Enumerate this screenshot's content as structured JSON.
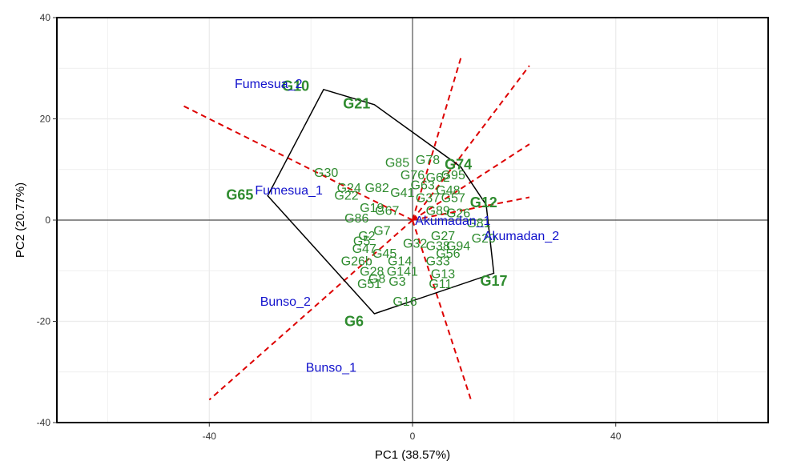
{
  "chart_data": {
    "type": "scatter",
    "xlabel": "PC1 (38.57%)",
    "ylabel": "PC2 (20.77%)",
    "xlim": [
      -70,
      70
    ],
    "ylim": [
      -40,
      40
    ],
    "x_ticks": [
      -40,
      0,
      40
    ],
    "y_ticks": [
      -40,
      -20,
      0,
      20,
      40
    ],
    "grid": true,
    "colors": {
      "environment": "#1111cc",
      "genotype": "#2e8b2e",
      "rays": "#dd0000",
      "hull": "#000000",
      "grid": "#ebebeb"
    },
    "environments": [
      {
        "label": "Fumesua_2",
        "x": -35,
        "y": 27
      },
      {
        "label": "Fumesua_1",
        "x": -31,
        "y": 6
      },
      {
        "label": "Bunso_2",
        "x": -30,
        "y": -16
      },
      {
        "label": "Bunso_1",
        "x": -21,
        "y": -29
      },
      {
        "label": "Akumadan_1",
        "x": 0.5,
        "y": 0
      },
      {
        "label": "Akumadan_2",
        "x": 14,
        "y": -3
      }
    ],
    "hull": [
      {
        "x": -17.5,
        "y": 25.8
      },
      {
        "x": -7.5,
        "y": 22.8
      },
      {
        "x": 9.5,
        "y": 10.5
      },
      {
        "x": 14.5,
        "y": 3
      },
      {
        "x": 16,
        "y": -10.5
      },
      {
        "x": -7.5,
        "y": -18.5
      },
      {
        "x": -28.5,
        "y": 4.8
      }
    ],
    "rays": [
      {
        "x": -45,
        "y": 22.5
      },
      {
        "x": -40,
        "y": -35.5
      },
      {
        "x": 9.5,
        "y": 32
      },
      {
        "x": 23,
        "y": 30.5
      },
      {
        "x": 23,
        "y": 15
      },
      {
        "x": 23,
        "y": 4.5
      },
      {
        "x": 11.5,
        "y": -35.5
      }
    ],
    "genotypes_highlighted": [
      {
        "label": "G10",
        "x": -23,
        "y": 26.5
      },
      {
        "label": "G21",
        "x": -11,
        "y": 23
      },
      {
        "label": "G74",
        "x": 9,
        "y": 11
      },
      {
        "label": "G12",
        "x": 14,
        "y": 3.5
      },
      {
        "label": "G17",
        "x": 16,
        "y": -12
      },
      {
        "label": "G6",
        "x": -11.5,
        "y": -20
      },
      {
        "label": "G65",
        "x": -34,
        "y": 5
      }
    ],
    "genotypes": [
      {
        "label": "G30",
        "x": -17,
        "y": 9.5
      },
      {
        "label": "G24",
        "x": -12.5,
        "y": 6.5
      },
      {
        "label": "G22",
        "x": -13,
        "y": 5
      },
      {
        "label": "G82",
        "x": -7,
        "y": 6.5
      },
      {
        "label": "G85",
        "x": -3,
        "y": 11.5
      },
      {
        "label": "G78",
        "x": 3,
        "y": 12
      },
      {
        "label": "G76",
        "x": 0,
        "y": 9
      },
      {
        "label": "G62",
        "x": 5,
        "y": 8.5
      },
      {
        "label": "G63",
        "x": 2,
        "y": 7
      },
      {
        "label": "G95",
        "x": 8,
        "y": 9
      },
      {
        "label": "G48",
        "x": 7,
        "y": 6
      },
      {
        "label": "G41",
        "x": -2,
        "y": 5.5
      },
      {
        "label": "G37",
        "x": 3,
        "y": 4.5
      },
      {
        "label": "G57",
        "x": 8,
        "y": 4.5
      },
      {
        "label": "G19",
        "x": -8,
        "y": 2.5
      },
      {
        "label": "G67",
        "x": -5,
        "y": 2
      },
      {
        "label": "G86",
        "x": -11,
        "y": 0.5
      },
      {
        "label": "G89",
        "x": 5,
        "y": 2
      },
      {
        "label": "G26",
        "x": 9,
        "y": 1.5
      },
      {
        "label": "G81",
        "x": 13,
        "y": -0.5
      },
      {
        "label": "G7",
        "x": -6,
        "y": -2
      },
      {
        "label": "G2",
        "x": -9,
        "y": -3
      },
      {
        "label": "G5",
        "x": -10,
        "y": -4
      },
      {
        "label": "G47",
        "x": -9.5,
        "y": -5.5
      },
      {
        "label": "G45",
        "x": -5.5,
        "y": -6.5
      },
      {
        "label": "G32",
        "x": 0.5,
        "y": -4.5
      },
      {
        "label": "G38",
        "x": 5,
        "y": -5
      },
      {
        "label": "G94",
        "x": 9,
        "y": -5
      },
      {
        "label": "G56",
        "x": 7,
        "y": -6.5
      },
      {
        "label": "G27",
        "x": 6,
        "y": -3
      },
      {
        "label": "G20",
        "x": 14,
        "y": -3.5
      },
      {
        "label": "G26b",
        "x": -11,
        "y": -8
      },
      {
        "label": "G14",
        "x": -2.5,
        "y": -8
      },
      {
        "label": "G33",
        "x": 5,
        "y": -8
      },
      {
        "label": "G28",
        "x": -8,
        "y": -10
      },
      {
        "label": "G141",
        "x": -2,
        "y": -10
      },
      {
        "label": "G13",
        "x": 6,
        "y": -10.5
      },
      {
        "label": "G8",
        "x": -7,
        "y": -11.5
      },
      {
        "label": "G3",
        "x": -3,
        "y": -12
      },
      {
        "label": "G51",
        "x": -8.5,
        "y": -12.5
      },
      {
        "label": "G11",
        "x": 5.5,
        "y": -12.5
      },
      {
        "label": "G16",
        "x": -1.5,
        "y": -16
      }
    ]
  }
}
